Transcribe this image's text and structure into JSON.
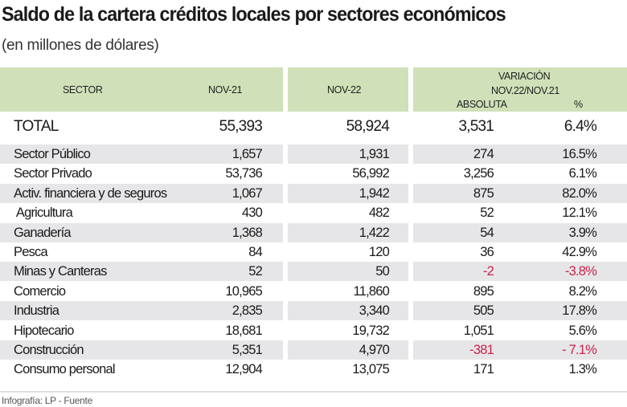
{
  "title": "Saldo de la cartera créditos locales por sectores económicos",
  "subtitle": "(en millones de dólares)",
  "footer": "Infografía: LP - Fuente",
  "colors": {
    "header_bg": "#d0e0b8",
    "stripe": "#e6e6e8",
    "negative": "#c8234a"
  },
  "chart_data": {
    "type": "table",
    "headers": {
      "sector": "SECTOR",
      "nov21": "NOV-21",
      "nov22": "NOV-22",
      "variacion": "VARIACIÓN",
      "variacion_sub": "NOV.22/NOV.21",
      "absoluta": "ABSOLUTA",
      "pct": "%"
    },
    "rows": [
      {
        "sector": "TOTAL",
        "nov21": "55,393",
        "nov22": "58,924",
        "abs": "3,531",
        "pct": "6.4%"
      },
      {
        "sector": "Sector Público",
        "nov21": "1,657",
        "nov22": "1,931",
        "abs": "274",
        "pct": "16.5%"
      },
      {
        "sector": "Sector Privado",
        "nov21": "53,736",
        "nov22": "56,992",
        "abs": "3,256",
        "pct": "6.1%"
      },
      {
        "sector": "Activ. financiera y de seguros",
        "nov21": "1,067",
        "nov22": "1,942",
        "abs": "875",
        "pct": "82.0%"
      },
      {
        "sector": " Agricultura",
        "nov21": "430",
        "nov22": "482",
        "abs": "52",
        "pct": "12.1%"
      },
      {
        "sector": "Ganadería",
        "nov21": "1,368",
        "nov22": "1,422",
        "abs": "54",
        "pct": "3.9%"
      },
      {
        "sector": "Pesca",
        "nov21": "84",
        "nov22": "120",
        "abs": "36",
        "pct": "42.9%"
      },
      {
        "sector": "Minas y Canteras",
        "nov21": "52",
        "nov22": "50",
        "abs": "-2",
        "pct": "-3.8%"
      },
      {
        "sector": "Comercio",
        "nov21": "10,965",
        "nov22": "11,860",
        "abs": "895",
        "pct": "8.2%"
      },
      {
        "sector": "Industria",
        "nov21": "2,835",
        "nov22": "3,340",
        "abs": "505",
        "pct": "17.8%"
      },
      {
        "sector": "Hipotecario",
        "nov21": "18,681",
        "nov22": "19,732",
        "abs": "1,051",
        "pct": "5.6%"
      },
      {
        "sector": "Construcción",
        "nov21": "5,351",
        "nov22": "4,970",
        "abs": "-381",
        "pct": "- 7.1%"
      },
      {
        "sector": "Consumo personal",
        "nov21": "12,904",
        "nov22": "13,075",
        "abs": "171",
        "pct": "1.3%"
      }
    ]
  }
}
